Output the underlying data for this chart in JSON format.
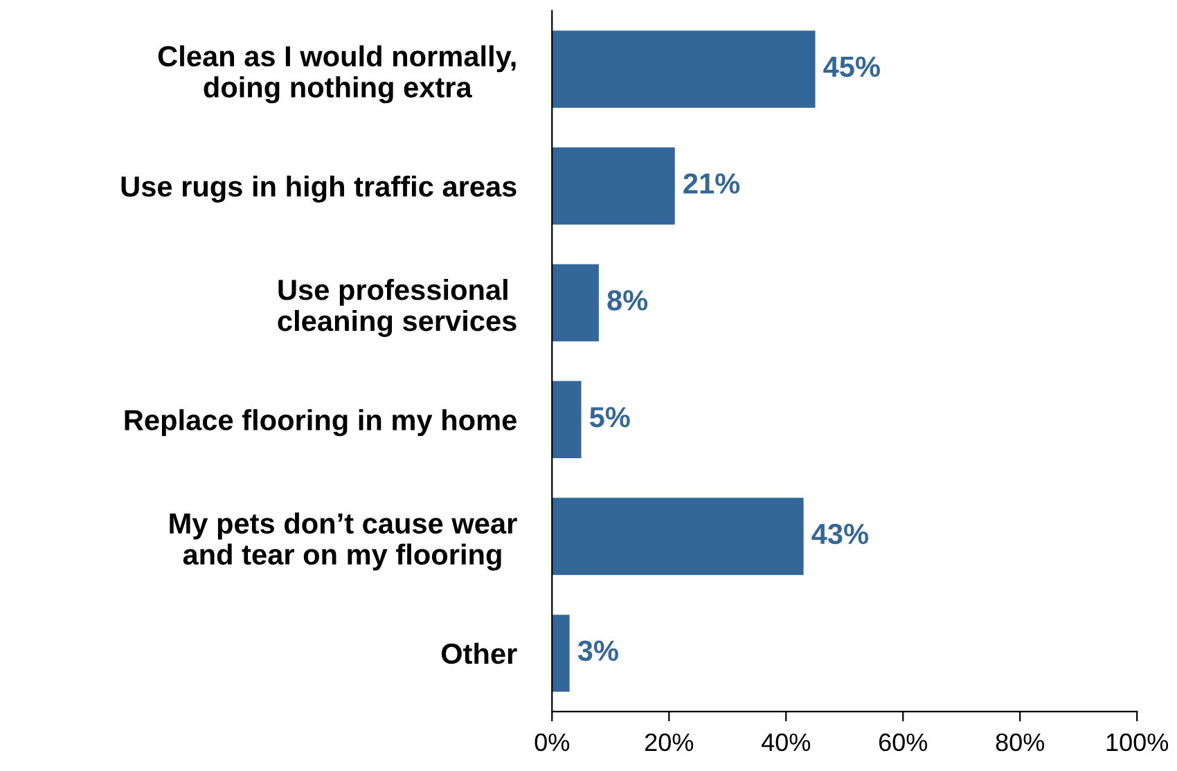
{
  "chart_data": {
    "type": "bar",
    "orientation": "horizontal",
    "categories": [
      "Clean as I would normally,\ndoing nothing extra",
      "Use rugs in high traffic areas",
      "Use professional \ncleaning services",
      "Replace flooring in my home",
      "My pets don’t cause wear\nand tear on my flooring",
      "Other"
    ],
    "values": [
      45,
      21,
      8,
      5,
      43,
      3
    ],
    "value_labels": [
      "45%",
      "21%",
      "8%",
      "5%",
      "43%",
      "3%"
    ],
    "color": "#336699",
    "xlim": [
      0,
      100
    ],
    "xticks": [
      {
        "value": 0,
        "label": "0%"
      },
      {
        "value": 20,
        "label": "20%"
      },
      {
        "value": 40,
        "label": "40%"
      },
      {
        "value": 60,
        "label": "60%"
      },
      {
        "value": 80,
        "label": "80%"
      },
      {
        "value": 100,
        "label": "100%"
      }
    ],
    "grid": false,
    "legend": false
  }
}
